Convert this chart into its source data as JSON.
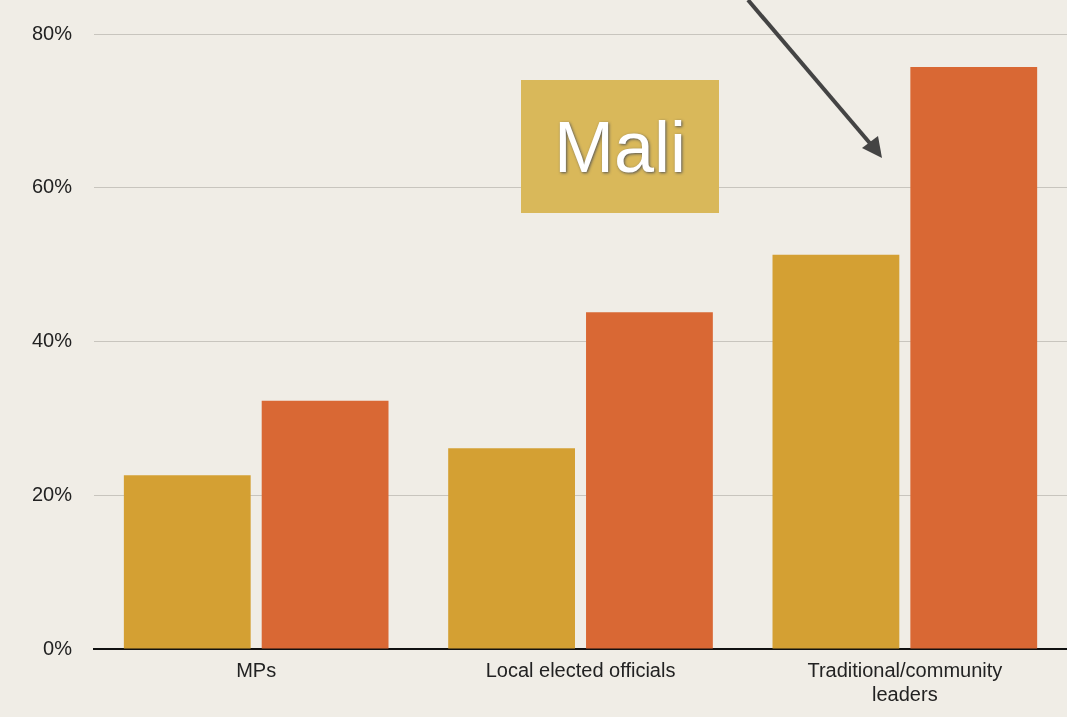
{
  "chart_data": {
    "type": "bar",
    "categories": [
      "MPs",
      "Local elected officials",
      "Traditional/community leaders"
    ],
    "series": [
      {
        "color": "#d4a033",
        "values": [
          22.6,
          26.1,
          51.3
        ]
      },
      {
        "color": "#d96834",
        "values": [
          32.3,
          43.8,
          75.7
        ]
      }
    ],
    "ylim": [
      0,
      80
    ],
    "yticks": [
      {
        "value": 0,
        "label": "0%"
      },
      {
        "value": 20,
        "label": "20%"
      },
      {
        "value": 40,
        "label": "40%"
      },
      {
        "value": 60,
        "label": "60%"
      },
      {
        "value": 80,
        "label": "80%"
      }
    ],
    "grid": "y",
    "legend": false,
    "annotations": [
      "Mali"
    ]
  }
}
